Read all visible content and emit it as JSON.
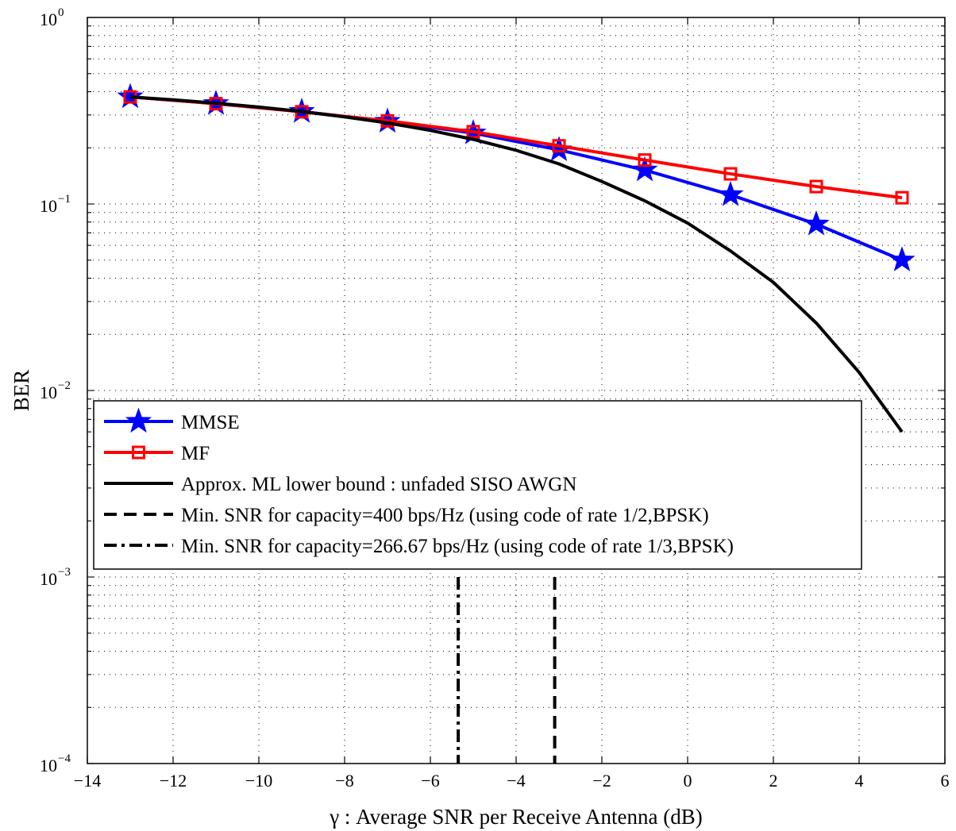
{
  "chart_data": {
    "type": "line",
    "title": "",
    "xlabel": "γ : Average SNR per Receive Antenna (dB)",
    "ylabel": "BER",
    "xlim": [
      -14,
      6
    ],
    "ylim": [
      0.0001,
      1
    ],
    "yscale": "log",
    "grid": true,
    "x_ticks": [
      "−14",
      "−12",
      "−10",
      "−8",
      "−6",
      "−4",
      "−2",
      "0",
      "2",
      "4",
      "6"
    ],
    "y_ticks": [
      {
        "base": "10",
        "exp": "−4"
      },
      {
        "base": "10",
        "exp": "−3"
      },
      {
        "base": "10",
        "exp": "−2"
      },
      {
        "base": "10",
        "exp": "−1"
      },
      {
        "base": "10",
        "exp": "0"
      }
    ],
    "legend_position": "lower-left-center",
    "series": [
      {
        "name": "MMSE",
        "color": "#0000ff",
        "marker": "star",
        "style": "solid",
        "x": [
          -13,
          -11,
          -9,
          -7,
          -5,
          -3,
          -1,
          1,
          3,
          5
        ],
        "y": [
          0.375,
          0.345,
          0.313,
          0.277,
          0.24,
          0.195,
          0.152,
          0.112,
          0.078,
          0.05
        ]
      },
      {
        "name": "MF",
        "color": "#ff0000",
        "marker": "square",
        "style": "solid",
        "x": [
          -13,
          -11,
          -9,
          -7,
          -5,
          -3,
          -1,
          1,
          3,
          5
        ],
        "y": [
          0.375,
          0.345,
          0.312,
          0.279,
          0.244,
          0.205,
          0.172,
          0.145,
          0.124,
          0.108
        ]
      },
      {
        "name": "Approx. ML lower bound : unfaded SISO AWGN",
        "color": "#000000",
        "marker": "none",
        "style": "solid",
        "x": [
          -13,
          -12,
          -11,
          -10,
          -9,
          -8,
          -7,
          -6,
          -5,
          -4,
          -3,
          -2,
          -1,
          0,
          1,
          2,
          3,
          4,
          5
        ],
        "y": [
          0.375,
          0.362,
          0.347,
          0.331,
          0.313,
          0.293,
          0.272,
          0.248,
          0.222,
          0.194,
          0.164,
          0.132,
          0.104,
          0.079,
          0.056,
          0.038,
          0.023,
          0.0125,
          0.006
        ]
      },
      {
        "name": "Min. SNR for capacity=400 bps/Hz (using code of rate 1/2,BPSK)",
        "color": "#000000",
        "marker": "none",
        "style": "dashed",
        "x": [
          -3.1,
          -3.1
        ],
        "y": [
          0.001,
          0.0001
        ]
      },
      {
        "name": "Min. SNR for capacity=266.67 bps/Hz (using code of rate 1/3,BPSK)",
        "color": "#000000",
        "marker": "none",
        "style": "dashdot",
        "x": [
          -5.35,
          -5.35
        ],
        "y": [
          0.001,
          0.0001
        ]
      }
    ]
  }
}
